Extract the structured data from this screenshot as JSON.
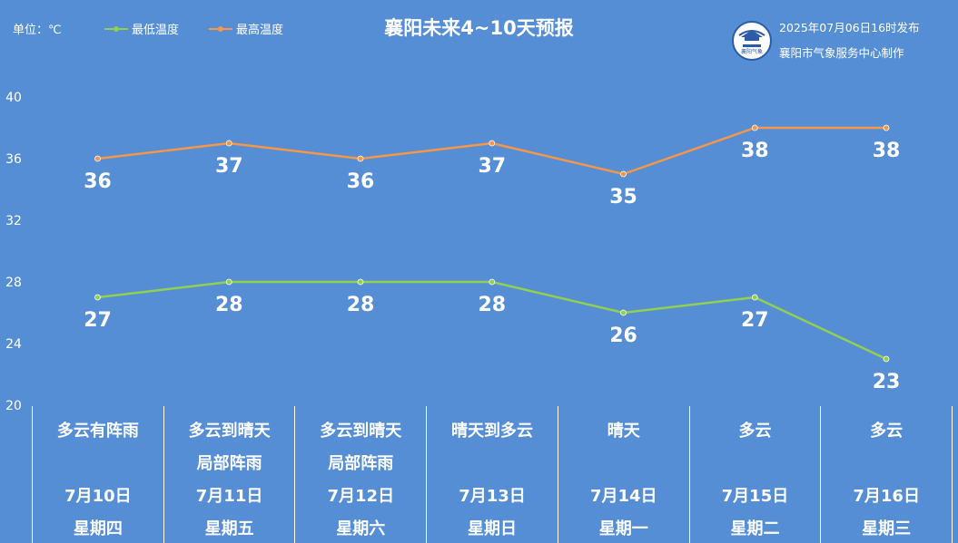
{
  "header": {
    "unit_label": "单位：℃",
    "title": "襄阳未来4~10天预报",
    "issued": "2025年07月06日16时发布",
    "maker": "襄阳市气象服务中心制作",
    "logo_text": "襄阳气象"
  },
  "legend": {
    "low_label": "最低温度",
    "high_label": "最高温度"
  },
  "colors": {
    "background": "#558ed5",
    "low_line": "#92d050",
    "high_line": "#f79646"
  },
  "chart_data": {
    "type": "line",
    "title": "襄阳未来4~10天预报",
    "ylabel": "单位：℃",
    "ylim": [
      20,
      40
    ],
    "yticks": [
      20,
      24,
      28,
      32,
      36,
      40
    ],
    "grid": false,
    "legend_position": "top-left",
    "categories": [
      "7月10日",
      "7月11日",
      "7月12日",
      "7月13日",
      "7月14日",
      "7月15日",
      "7月16日"
    ],
    "series": [
      {
        "name": "最低温度",
        "values": [
          27,
          28,
          28,
          28,
          26,
          27,
          23
        ]
      },
      {
        "name": "最高温度",
        "values": [
          36,
          37,
          36,
          37,
          35,
          38,
          38
        ]
      }
    ]
  },
  "days": [
    {
      "weather1": "多云有阵雨",
      "weather2": "",
      "date": "7月10日",
      "weekday": "星期四"
    },
    {
      "weather1": "多云到晴天",
      "weather2": "局部阵雨",
      "date": "7月11日",
      "weekday": "星期五"
    },
    {
      "weather1": "多云到晴天",
      "weather2": "局部阵雨",
      "date": "7月12日",
      "weekday": "星期六"
    },
    {
      "weather1": "晴天到多云",
      "weather2": "",
      "date": "7月13日",
      "weekday": "星期日"
    },
    {
      "weather1": "晴天",
      "weather2": "",
      "date": "7月14日",
      "weekday": "星期一"
    },
    {
      "weather1": "多云",
      "weather2": "",
      "date": "7月15日",
      "weekday": "星期二"
    },
    {
      "weather1": "多云",
      "weather2": "",
      "date": "7月16日",
      "weekday": "星期三"
    }
  ]
}
